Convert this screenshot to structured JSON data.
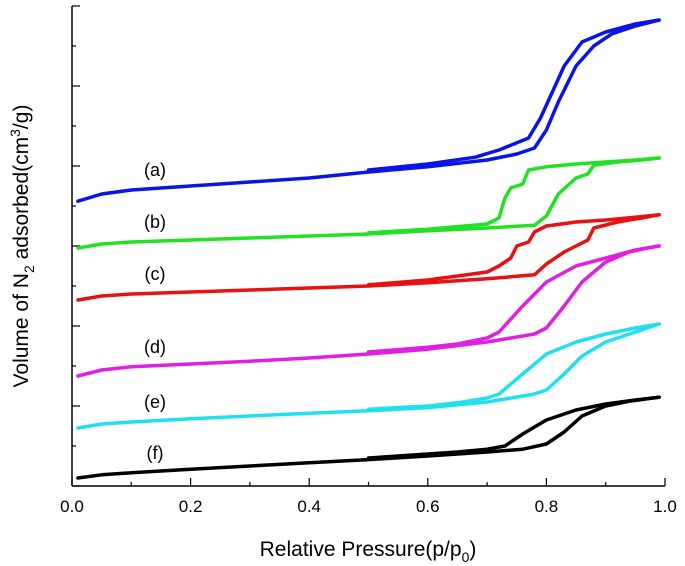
{
  "chart_data": {
    "type": "line",
    "title": "",
    "xlabel": {
      "main": "Relative Pressure(p/p",
      "sub": "0",
      "end": ")"
    },
    "ylabel": {
      "prefix": "Volume of N",
      "sub": "2",
      "middle": " adsorbed(cm",
      "sup": "3",
      "end": "/g)"
    },
    "xlim": [
      0.0,
      1.0
    ],
    "ylim": [
      0,
      12
    ],
    "x_ticks": [
      "0.0",
      "0.2",
      "0.4",
      "0.6",
      "0.8",
      "1.0"
    ],
    "y_tick_labels_shown": false,
    "grid": false,
    "series": [
      {
        "name": "a",
        "label": "(a)",
        "color": "#0a14e6",
        "adsorption": [
          [
            0.01,
            7.12
          ],
          [
            0.05,
            7.3
          ],
          [
            0.1,
            7.4
          ],
          [
            0.2,
            7.5
          ],
          [
            0.3,
            7.6
          ],
          [
            0.4,
            7.7
          ],
          [
            0.5,
            7.85
          ],
          [
            0.6,
            7.98
          ],
          [
            0.7,
            8.15
          ],
          [
            0.75,
            8.3
          ],
          [
            0.78,
            8.45
          ],
          [
            0.8,
            8.9
          ],
          [
            0.82,
            9.6
          ],
          [
            0.85,
            10.5
          ],
          [
            0.88,
            11.0
          ],
          [
            0.91,
            11.3
          ],
          [
            0.95,
            11.5
          ],
          [
            0.99,
            11.65
          ]
        ],
        "desorption": [
          [
            0.99,
            11.65
          ],
          [
            0.95,
            11.55
          ],
          [
            0.9,
            11.35
          ],
          [
            0.86,
            11.1
          ],
          [
            0.83,
            10.5
          ],
          [
            0.79,
            9.2
          ],
          [
            0.77,
            8.7
          ],
          [
            0.72,
            8.4
          ],
          [
            0.68,
            8.22
          ],
          [
            0.6,
            8.05
          ],
          [
            0.5,
            7.9
          ]
        ]
      },
      {
        "name": "b",
        "label": "(b)",
        "color": "#22e022",
        "adsorption": [
          [
            0.01,
            5.95
          ],
          [
            0.05,
            6.05
          ],
          [
            0.1,
            6.1
          ],
          [
            0.2,
            6.15
          ],
          [
            0.3,
            6.2
          ],
          [
            0.4,
            6.25
          ],
          [
            0.5,
            6.3
          ],
          [
            0.6,
            6.38
          ],
          [
            0.7,
            6.45
          ],
          [
            0.78,
            6.52
          ],
          [
            0.8,
            6.75
          ],
          [
            0.82,
            7.3
          ],
          [
            0.85,
            7.7
          ],
          [
            0.87,
            7.8
          ],
          [
            0.88,
            8.02
          ],
          [
            0.92,
            8.1
          ],
          [
            0.96,
            8.15
          ],
          [
            0.99,
            8.2
          ]
        ],
        "desorption": [
          [
            0.99,
            8.2
          ],
          [
            0.95,
            8.15
          ],
          [
            0.9,
            8.1
          ],
          [
            0.85,
            8.05
          ],
          [
            0.8,
            7.98
          ],
          [
            0.77,
            7.9
          ],
          [
            0.76,
            7.55
          ],
          [
            0.74,
            7.45
          ],
          [
            0.73,
            7.2
          ],
          [
            0.72,
            6.7
          ],
          [
            0.7,
            6.55
          ],
          [
            0.6,
            6.42
          ],
          [
            0.5,
            6.33
          ]
        ]
      },
      {
        "name": "c",
        "label": "(c)",
        "color": "#e81010",
        "adsorption": [
          [
            0.01,
            4.65
          ],
          [
            0.05,
            4.75
          ],
          [
            0.1,
            4.8
          ],
          [
            0.2,
            4.85
          ],
          [
            0.3,
            4.9
          ],
          [
            0.4,
            4.95
          ],
          [
            0.5,
            5.0
          ],
          [
            0.6,
            5.08
          ],
          [
            0.7,
            5.18
          ],
          [
            0.78,
            5.28
          ],
          [
            0.8,
            5.55
          ],
          [
            0.83,
            5.85
          ],
          [
            0.85,
            6.0
          ],
          [
            0.87,
            6.15
          ],
          [
            0.88,
            6.45
          ],
          [
            0.92,
            6.6
          ],
          [
            0.96,
            6.7
          ],
          [
            0.99,
            6.78
          ]
        ],
        "desorption": [
          [
            0.99,
            6.78
          ],
          [
            0.95,
            6.72
          ],
          [
            0.9,
            6.65
          ],
          [
            0.85,
            6.6
          ],
          [
            0.8,
            6.5
          ],
          [
            0.78,
            6.35
          ],
          [
            0.77,
            6.1
          ],
          [
            0.75,
            6.0
          ],
          [
            0.74,
            5.7
          ],
          [
            0.72,
            5.5
          ],
          [
            0.7,
            5.35
          ],
          [
            0.6,
            5.15
          ],
          [
            0.5,
            5.03
          ]
        ]
      },
      {
        "name": "d",
        "label": "(d)",
        "color": "#e020e0",
        "adsorption": [
          [
            0.01,
            2.75
          ],
          [
            0.05,
            2.9
          ],
          [
            0.1,
            2.98
          ],
          [
            0.2,
            3.05
          ],
          [
            0.3,
            3.12
          ],
          [
            0.4,
            3.2
          ],
          [
            0.5,
            3.3
          ],
          [
            0.6,
            3.42
          ],
          [
            0.7,
            3.6
          ],
          [
            0.78,
            3.8
          ],
          [
            0.8,
            3.95
          ],
          [
            0.83,
            4.5
          ],
          [
            0.86,
            5.1
          ],
          [
            0.9,
            5.6
          ],
          [
            0.94,
            5.85
          ],
          [
            0.97,
            5.95
          ],
          [
            0.99,
            6.0
          ]
        ],
        "desorption": [
          [
            0.99,
            6.0
          ],
          [
            0.95,
            5.9
          ],
          [
            0.9,
            5.7
          ],
          [
            0.85,
            5.5
          ],
          [
            0.8,
            5.1
          ],
          [
            0.76,
            4.5
          ],
          [
            0.72,
            3.85
          ],
          [
            0.7,
            3.7
          ],
          [
            0.65,
            3.55
          ],
          [
            0.6,
            3.47
          ],
          [
            0.5,
            3.35
          ]
        ]
      },
      {
        "name": "e",
        "label": "(e)",
        "color": "#20e0f0",
        "adsorption": [
          [
            0.01,
            1.45
          ],
          [
            0.05,
            1.55
          ],
          [
            0.1,
            1.6
          ],
          [
            0.2,
            1.68
          ],
          [
            0.3,
            1.75
          ],
          [
            0.4,
            1.82
          ],
          [
            0.5,
            1.88
          ],
          [
            0.6,
            1.96
          ],
          [
            0.7,
            2.1
          ],
          [
            0.78,
            2.3
          ],
          [
            0.8,
            2.4
          ],
          [
            0.83,
            2.8
          ],
          [
            0.86,
            3.25
          ],
          [
            0.9,
            3.6
          ],
          [
            0.94,
            3.8
          ],
          [
            0.97,
            3.95
          ],
          [
            0.99,
            4.05
          ]
        ],
        "desorption": [
          [
            0.99,
            4.05
          ],
          [
            0.95,
            3.95
          ],
          [
            0.9,
            3.8
          ],
          [
            0.85,
            3.6
          ],
          [
            0.8,
            3.3
          ],
          [
            0.76,
            2.8
          ],
          [
            0.72,
            2.3
          ],
          [
            0.7,
            2.2
          ],
          [
            0.65,
            2.08
          ],
          [
            0.6,
            2.0
          ],
          [
            0.5,
            1.92
          ]
        ]
      },
      {
        "name": "f",
        "label": "(f)",
        "color": "#000000",
        "adsorption": [
          [
            0.01,
            0.2
          ],
          [
            0.05,
            0.28
          ],
          [
            0.1,
            0.33
          ],
          [
            0.2,
            0.42
          ],
          [
            0.3,
            0.5
          ],
          [
            0.4,
            0.58
          ],
          [
            0.5,
            0.66
          ],
          [
            0.6,
            0.75
          ],
          [
            0.7,
            0.85
          ],
          [
            0.76,
            0.92
          ],
          [
            0.8,
            1.05
          ],
          [
            0.83,
            1.35
          ],
          [
            0.86,
            1.75
          ],
          [
            0.9,
            2.0
          ],
          [
            0.94,
            2.12
          ],
          [
            0.97,
            2.18
          ],
          [
            0.99,
            2.22
          ]
        ],
        "desorption": [
          [
            0.99,
            2.22
          ],
          [
            0.95,
            2.15
          ],
          [
            0.9,
            2.05
          ],
          [
            0.85,
            1.9
          ],
          [
            0.8,
            1.65
          ],
          [
            0.76,
            1.3
          ],
          [
            0.73,
            1.0
          ],
          [
            0.7,
            0.92
          ],
          [
            0.65,
            0.85
          ],
          [
            0.6,
            0.8
          ],
          [
            0.5,
            0.7
          ]
        ]
      }
    ]
  }
}
